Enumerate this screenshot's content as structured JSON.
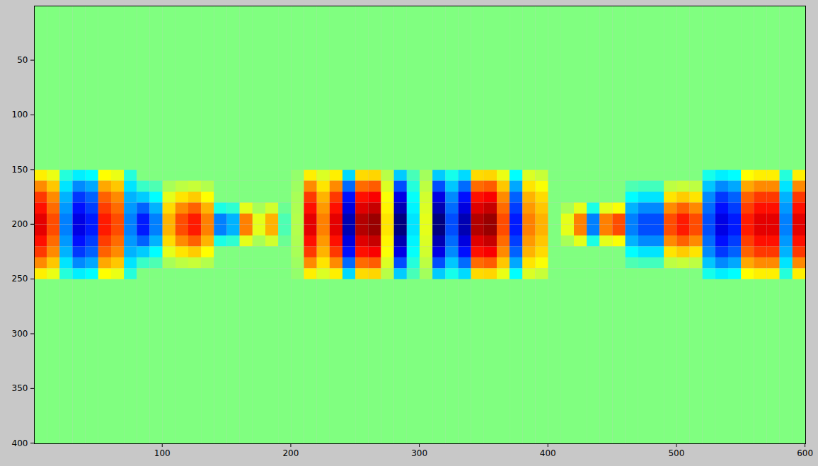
{
  "chart_data": {
    "type": "heatmap",
    "xlim": [
      0.5,
      600.5
    ],
    "ylim": [
      0.5,
      400.5
    ],
    "xticks": [
      100,
      200,
      300,
      400,
      500,
      600
    ],
    "yticks": [
      50,
      100,
      150,
      200,
      250,
      300,
      350,
      400
    ],
    "clim": [
      -1,
      1
    ],
    "cells": {
      "x_edges": [
        0.5,
        10.5,
        20.5,
        30.5,
        40.5,
        50.5,
        60.5,
        70.5,
        80.5,
        90.5,
        100.5,
        110.5,
        120.5,
        130.5,
        140.5,
        150.5,
        160.5,
        170.5,
        180.5,
        190.5,
        200.5,
        210.5,
        220.5,
        230.5,
        240.5,
        250.5,
        260.5,
        270.5,
        280.5,
        290.5,
        300.5,
        310.5,
        320.5,
        330.5,
        340.5,
        350.5,
        360.5,
        370.5,
        380.5,
        390.5,
        400.5,
        410.5,
        420.5,
        430.5,
        440.5,
        450.5,
        460.5,
        470.5,
        480.5,
        490.5,
        500.5,
        510.5,
        520.5,
        530.5,
        540.5,
        550.5,
        560.5,
        570.5,
        580.5,
        590.5,
        600.5
      ],
      "y_edges": [
        0.5,
        150.5,
        160.5,
        170.5,
        180.5,
        190.5,
        200.5,
        210.5,
        220.5,
        230.5,
        240.5,
        250.5,
        400.5
      ],
      "values": [
        [
          0,
          0,
          0,
          0,
          0,
          0,
          0,
          0,
          0,
          0,
          0,
          0,
          0,
          0,
          0,
          0,
          0,
          0,
          0,
          0,
          0,
          0,
          0,
          0,
          0,
          0,
          0,
          0,
          0,
          0,
          0,
          0,
          0,
          0,
          0,
          0,
          0,
          0,
          0,
          0,
          0,
          0,
          0,
          0,
          0,
          0,
          0,
          0,
          0,
          0,
          0,
          0,
          0,
          0,
          0,
          0,
          0,
          0,
          0,
          0
        ],
        [
          0.28,
          0.21,
          -0.18,
          -0.28,
          -0.25,
          0.25,
          0.21,
          -0.18,
          0,
          0,
          0,
          0,
          0,
          0,
          0,
          0,
          0,
          0,
          0,
          0,
          0.04,
          0.28,
          0.18,
          0.28,
          -0.32,
          0.32,
          0.33,
          0.11,
          -0.35,
          -0.11,
          0.07,
          -0.35,
          -0.21,
          -0.32,
          0.32,
          0.33,
          0.21,
          -0.25,
          0.18,
          0.14,
          0,
          0,
          0,
          0,
          0,
          0,
          0,
          0,
          0,
          0,
          0,
          0,
          -0.21,
          -0.28,
          -0.25,
          0.25,
          0.28,
          0.28,
          -0.18,
          0.28
        ],
        [
          0.48,
          0.36,
          -0.3,
          -0.48,
          -0.42,
          0.42,
          0.36,
          -0.3,
          -0.14,
          -0.1,
          0.08,
          0.12,
          0.14,
          0.1,
          0,
          0,
          0,
          0,
          0,
          0,
          0.06,
          0.48,
          0.3,
          0.48,
          -0.54,
          0.54,
          0.57,
          0.18,
          -0.6,
          -0.18,
          0.12,
          -0.6,
          -0.36,
          -0.54,
          0.54,
          0.57,
          0.36,
          -0.42,
          0.3,
          0.24,
          0,
          0,
          0,
          0,
          0,
          0,
          -0.1,
          -0.12,
          -0.12,
          0.12,
          0.14,
          0.12,
          -0.36,
          -0.48,
          -0.42,
          0.42,
          0.48,
          0.48,
          -0.3,
          0.48
        ],
        [
          0.64,
          0.48,
          -0.4,
          -0.64,
          -0.56,
          0.56,
          0.48,
          -0.4,
          -0.35,
          -0.25,
          0.2,
          0.3,
          0.35,
          0.25,
          0,
          0,
          0,
          0,
          0,
          0,
          0.08,
          0.64,
          0.4,
          0.64,
          -0.72,
          0.72,
          0.76,
          0.24,
          -0.8,
          -0.24,
          0.16,
          -0.8,
          -0.48,
          -0.72,
          0.72,
          0.76,
          0.48,
          -0.56,
          0.4,
          0.32,
          0,
          0,
          0,
          0,
          0,
          0,
          -0.25,
          -0.3,
          -0.3,
          0.3,
          0.35,
          0.3,
          -0.48,
          -0.64,
          -0.56,
          0.56,
          0.64,
          0.64,
          -0.4,
          0.64
        ],
        [
          0.72,
          0.54,
          -0.45,
          -0.72,
          -0.63,
          0.63,
          0.54,
          -0.45,
          -0.56,
          -0.4,
          0.32,
          0.48,
          0.56,
          0.4,
          -0.2,
          -0.16,
          0.2,
          0.08,
          0.16,
          -0.04,
          0.09,
          0.72,
          0.45,
          0.72,
          -0.81,
          0.81,
          0.86,
          0.27,
          -0.9,
          -0.27,
          0.18,
          -0.9,
          -0.54,
          -0.81,
          0.81,
          0.86,
          0.54,
          -0.63,
          0.45,
          0.36,
          0,
          0.08,
          0.2,
          -0.2,
          0.2,
          0.24,
          -0.4,
          -0.48,
          -0.48,
          0.48,
          0.56,
          0.48,
          -0.54,
          -0.72,
          -0.63,
          0.63,
          0.72,
          0.72,
          -0.45,
          0.72
        ],
        [
          0.8,
          0.6,
          -0.5,
          -0.8,
          -0.7,
          0.7,
          0.6,
          -0.5,
          -0.7,
          -0.5,
          0.4,
          0.6,
          0.7,
          0.5,
          -0.5,
          -0.4,
          0.5,
          0.2,
          0.4,
          -0.1,
          0.1,
          0.8,
          0.5,
          0.8,
          -0.9,
          0.9,
          0.95,
          0.3,
          -1.0,
          -0.3,
          0.2,
          -1.0,
          -0.6,
          -0.9,
          0.9,
          0.95,
          0.6,
          -0.7,
          0.5,
          0.4,
          0.0,
          0.2,
          0.5,
          -0.5,
          0.5,
          0.6,
          -0.5,
          -0.6,
          -0.6,
          0.6,
          0.7,
          0.6,
          -0.6,
          -0.8,
          -0.7,
          0.7,
          0.8,
          0.8,
          -0.5,
          0.8
        ],
        [
          0.8,
          0.6,
          -0.5,
          -0.8,
          -0.7,
          0.7,
          0.6,
          -0.5,
          -0.7,
          -0.5,
          0.4,
          0.6,
          0.7,
          0.5,
          -0.5,
          -0.4,
          0.5,
          0.2,
          0.4,
          -0.1,
          0.1,
          0.8,
          0.5,
          0.8,
          -0.9,
          0.9,
          0.95,
          0.3,
          -1.0,
          -0.3,
          0.2,
          -1.0,
          -0.6,
          -0.9,
          0.9,
          0.95,
          0.6,
          -0.7,
          0.5,
          0.4,
          0.0,
          0.2,
          0.5,
          -0.5,
          0.5,
          0.6,
          -0.5,
          -0.6,
          -0.6,
          0.6,
          0.7,
          0.6,
          -0.6,
          -0.8,
          -0.7,
          0.7,
          0.8,
          0.8,
          -0.5,
          0.8
        ],
        [
          0.72,
          0.54,
          -0.45,
          -0.72,
          -0.63,
          0.63,
          0.54,
          -0.45,
          -0.56,
          -0.4,
          0.32,
          0.48,
          0.56,
          0.4,
          -0.2,
          -0.16,
          0.2,
          0.08,
          0.16,
          -0.04,
          0.09,
          0.72,
          0.45,
          0.72,
          -0.81,
          0.81,
          0.86,
          0.27,
          -0.9,
          -0.27,
          0.18,
          -0.9,
          -0.54,
          -0.81,
          0.81,
          0.86,
          0.54,
          -0.63,
          0.45,
          0.36,
          0,
          0.08,
          0.2,
          -0.2,
          0.2,
          0.24,
          -0.4,
          -0.48,
          -0.48,
          0.48,
          0.56,
          0.48,
          -0.54,
          -0.72,
          -0.63,
          0.63,
          0.72,
          0.72,
          -0.45,
          0.72
        ],
        [
          0.64,
          0.48,
          -0.4,
          -0.64,
          -0.56,
          0.56,
          0.48,
          -0.4,
          -0.35,
          -0.25,
          0.2,
          0.3,
          0.35,
          0.25,
          0,
          0,
          0,
          0,
          0,
          0,
          0.08,
          0.64,
          0.4,
          0.64,
          -0.72,
          0.72,
          0.76,
          0.24,
          -0.8,
          -0.24,
          0.16,
          -0.8,
          -0.48,
          -0.72,
          0.72,
          0.76,
          0.48,
          -0.56,
          0.4,
          0.32,
          0,
          0,
          0,
          0,
          0,
          0,
          -0.25,
          -0.3,
          -0.3,
          0.3,
          0.35,
          0.3,
          -0.48,
          -0.64,
          -0.56,
          0.56,
          0.64,
          0.64,
          -0.4,
          0.64
        ],
        [
          0.48,
          0.36,
          -0.3,
          -0.48,
          -0.42,
          0.42,
          0.36,
          -0.3,
          -0.14,
          -0.1,
          0.08,
          0.12,
          0.14,
          0.1,
          0,
          0,
          0,
          0,
          0,
          0,
          0.06,
          0.48,
          0.3,
          0.48,
          -0.54,
          0.54,
          0.57,
          0.18,
          -0.6,
          -0.18,
          0.12,
          -0.6,
          -0.36,
          -0.54,
          0.54,
          0.57,
          0.36,
          -0.42,
          0.3,
          0.24,
          0,
          0,
          0,
          0,
          0,
          0,
          -0.1,
          -0.12,
          -0.12,
          0.12,
          0.14,
          0.12,
          -0.36,
          -0.48,
          -0.42,
          0.42,
          0.48,
          0.48,
          -0.3,
          0.48
        ],
        [
          0.28,
          0.21,
          -0.18,
          -0.28,
          -0.25,
          0.25,
          0.21,
          -0.18,
          0,
          0,
          0,
          0,
          0,
          0,
          0,
          0,
          0,
          0,
          0,
          0,
          0.04,
          0.28,
          0.18,
          0.28,
          -0.32,
          0.32,
          0.33,
          0.11,
          -0.35,
          -0.11,
          0.07,
          -0.35,
          -0.21,
          -0.32,
          0.32,
          0.33,
          0.21,
          -0.25,
          0.18,
          0.14,
          0,
          0,
          0,
          0,
          0,
          0,
          0,
          0,
          0,
          0,
          0,
          0,
          -0.21,
          -0.28,
          -0.25,
          0.25,
          0.28,
          0.28,
          -0.18,
          0.28
        ],
        [
          0,
          0,
          0,
          0,
          0,
          0,
          0,
          0,
          0,
          0,
          0,
          0,
          0,
          0,
          0,
          0,
          0,
          0,
          0,
          0,
          0,
          0,
          0,
          0,
          0,
          0,
          0,
          0,
          0,
          0,
          0,
          0,
          0,
          0,
          0,
          0,
          0,
          0,
          0,
          0,
          0,
          0,
          0,
          0,
          0,
          0,
          0,
          0,
          0,
          0,
          0,
          0,
          0,
          0,
          0,
          0,
          0,
          0,
          0,
          0
        ]
      ]
    }
  }
}
